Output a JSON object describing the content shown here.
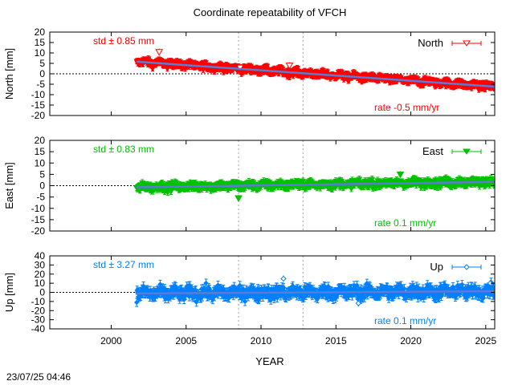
{
  "chart_data": {
    "type": "scatter",
    "title": "Coordinate repeatability of VFCH",
    "xlabel": "YEAR",
    "xlim": [
      1995.9,
      2025.6
    ],
    "x_ticks": [
      2000,
      2005,
      2010,
      2015,
      2020,
      2025
    ],
    "reference_lines_x": [
      2008.5,
      2012.8
    ],
    "timestamp": "23/07/25 04:46",
    "panels": [
      {
        "name": "north",
        "ylabel": "North [mm]",
        "legend": "North",
        "color": "#ff0000",
        "marker": "triangle-down-open",
        "ylim": [
          -20,
          20
        ],
        "y_ticks": [
          -20,
          -15,
          -10,
          -5,
          0,
          5,
          10,
          15,
          20
        ],
        "std_text": "std ± 0.85 mm",
        "rate_text": "rate -0.5 mm/yr",
        "start": 2001.7,
        "end": 2025.6,
        "trend_start": 5.8,
        "slope": -0.5,
        "noise": 0.85,
        "err": 1.2,
        "outliers": [
          {
            "x": 2003.2,
            "y": 10.5
          },
          {
            "x": 2008.6,
            "y": 3.0
          },
          {
            "x": 2011.9,
            "y": 4.0
          }
        ]
      },
      {
        "name": "east",
        "ylabel": "East [mm]",
        "legend": "East",
        "color": "#00c000",
        "marker": "triangle-down-filled",
        "ylim": [
          -20,
          20
        ],
        "y_ticks": [
          -20,
          -15,
          -10,
          -5,
          0,
          5,
          10,
          15,
          20
        ],
        "std_text": "std ± 0.83 mm",
        "rate_text": "rate  0.1 mm/yr",
        "start": 2001.7,
        "end": 2025.6,
        "trend_start": -0.7,
        "slope": 0.1,
        "noise": 0.83,
        "err": 1.3,
        "outliers": [
          {
            "x": 2008.5,
            "y": -5.5
          },
          {
            "x": 2019.3,
            "y": 5.0
          }
        ]
      },
      {
        "name": "up",
        "ylabel": "Up [mm]",
        "legend": "Up",
        "color": "#0080ff",
        "marker": "diamond-open",
        "ylim": [
          -40,
          40
        ],
        "y_ticks": [
          -40,
          -30,
          -20,
          -10,
          0,
          10,
          20,
          30,
          40
        ],
        "std_text": "std ± 3.27 mm",
        "rate_text": "rate  0.1 mm/yr",
        "start": 2001.7,
        "end": 2025.6,
        "trend_start": -1.2,
        "slope": 0.1,
        "noise": 3.27,
        "err": 4.5,
        "outliers": [
          {
            "x": 2011.5,
            "y": 15.0
          },
          {
            "x": 2016.5,
            "y": -12.0
          },
          {
            "x": 2025.3,
            "y": 10.0
          }
        ]
      }
    ]
  }
}
